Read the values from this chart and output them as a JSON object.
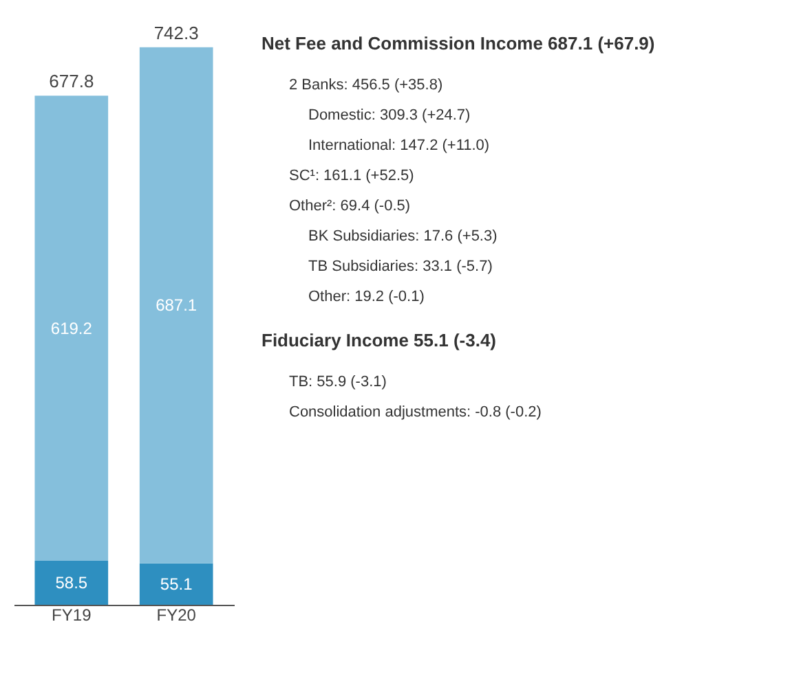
{
  "chart_data": {
    "type": "bar",
    "stacked": true,
    "data_labels": true,
    "categories": [
      "FY19",
      "FY20"
    ],
    "series": [
      {
        "color": "#2e8fc0",
        "values": [
          58.5,
          55.1
        ]
      },
      {
        "color": "#85bfdc",
        "values": [
          619.2,
          687.1
        ]
      }
    ],
    "totals": [
      "677.8",
      "742.3"
    ],
    "annotations": [
      "Net Fee and Commission Income 687.1 (+67.9)",
      "2 Banks: 456.5 (+35.8)",
      "Domestic: 309.3 (+24.7)",
      "International: 147.2 (+11.0)",
      "SC¹: 161.1 (+52.5)",
      "Other²: 69.4 (-0.5)",
      "BK Subsidiaries: 17.6 (+5.3)",
      "TB Subsidiaries: 33.1 (-5.7)",
      "Other: 19.2 (-0.1)",
      "Fiduciary Income 55.1 (-3.4)",
      "TB: 55.9 (-3.1)",
      "Consolidation adjustments: -0.8 (-0.2)"
    ]
  }
}
